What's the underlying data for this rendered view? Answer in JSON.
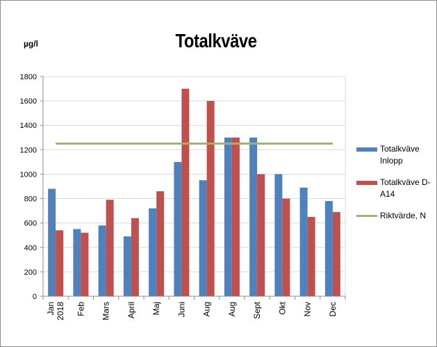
{
  "chart_data": {
    "type": "bar",
    "title": "Totalkväve",
    "ylabel": "µg/l",
    "ylim": [
      0,
      1800
    ],
    "yticks": [
      "0",
      "200",
      "400",
      "600",
      "800",
      "1000",
      "1200",
      "1400",
      "1600",
      "1800"
    ],
    "categories": [
      "Jan 2018",
      "Feb",
      "Mars",
      "April",
      "Maj",
      "Juni",
      "Aug",
      "Aug",
      "Sept",
      "Okt",
      "Nov",
      "Dec"
    ],
    "series": [
      {
        "name": "Totalkväve Inlopp",
        "color": "#4f81bd",
        "values": [
          880,
          550,
          580,
          490,
          720,
          1100,
          950,
          1300,
          1300,
          1000,
          890,
          780
        ]
      },
      {
        "name": "Totalkväve D-A14",
        "color": "#c0504d",
        "values": [
          540,
          520,
          790,
          640,
          860,
          1700,
          1600,
          1300,
          1000,
          800,
          650,
          690
        ]
      }
    ],
    "lines": [
      {
        "name": "Riktvärde, N",
        "color": "#9bbb59",
        "value": 1250
      }
    ],
    "grid": true,
    "legend": "right"
  }
}
